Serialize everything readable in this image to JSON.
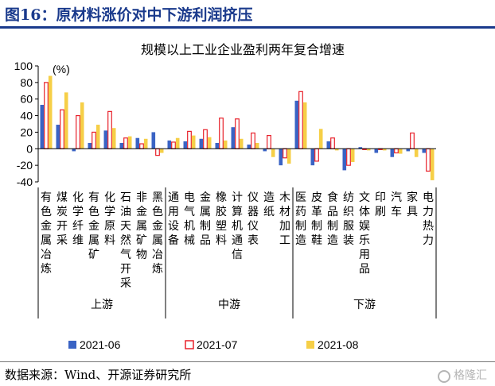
{
  "header": {
    "figure_title": "图16：原材料涨价对中下游利润挤压"
  },
  "footer": {
    "source": "数据来源：Wind、开源证券研究所",
    "watermark": "格隆汇"
  },
  "colors": {
    "s2021_06": "#3a63c4",
    "s2021_07_edge": "#e8202a",
    "s2021_08": "#f6cf47",
    "axis": "#000000"
  },
  "chart_data": {
    "type": "bar",
    "title": "规模以上工业企业盈利两年复合增速",
    "unit_label": "(%)",
    "ylim": [
      -40,
      100
    ],
    "yticks": [
      -40,
      -20,
      0,
      20,
      40,
      60,
      80,
      100
    ],
    "grid": false,
    "legend_position": "bottom",
    "categories": [
      "有色金属冶炼",
      "煤炭开采",
      "化学纤维",
      "有色金属矿",
      "化学原料",
      "石油天然气开采",
      "非金属矿物",
      "黑色金属冶炼",
      "通用设备",
      "电气机械",
      "金属制品",
      "橡胶塑料",
      "计算机通信",
      "仪器仪表",
      "造纸",
      "木材加工",
      "医药制造",
      "皮革制鞋",
      "食品制造",
      "纺织服装",
      "文体娱乐用品",
      "印刷",
      "汽车",
      "家具",
      "电力热力"
    ],
    "groups": [
      {
        "label": "上游",
        "start": 0,
        "end": 7
      },
      {
        "label": "中游",
        "start": 8,
        "end": 15
      },
      {
        "label": "下游",
        "start": 16,
        "end": 24
      }
    ],
    "series": [
      {
        "name": "2021-06",
        "values": [
          53,
          29,
          -3,
          7,
          22,
          7,
          13,
          20,
          10,
          9,
          12,
          7,
          26,
          5,
          -3,
          -20,
          58,
          -20,
          9,
          -26,
          2,
          -5,
          -10,
          -3,
          -5
        ]
      },
      {
        "name": "2021-07",
        "values": [
          80,
          47,
          40,
          20,
          45,
          13,
          6,
          -8,
          8,
          21,
          23,
          37,
          36,
          19,
          16,
          -11,
          69,
          -15,
          13,
          -20,
          -1,
          -1,
          -5,
          19,
          -27
        ]
      },
      {
        "name": "2021-08",
        "values": [
          88,
          68,
          56,
          29,
          25,
          15,
          12,
          -5,
          13,
          16,
          14,
          10,
          12,
          7,
          -10,
          -18,
          56,
          24,
          -2,
          -16,
          -2,
          -2,
          -6,
          -10,
          -38
        ]
      }
    ]
  }
}
